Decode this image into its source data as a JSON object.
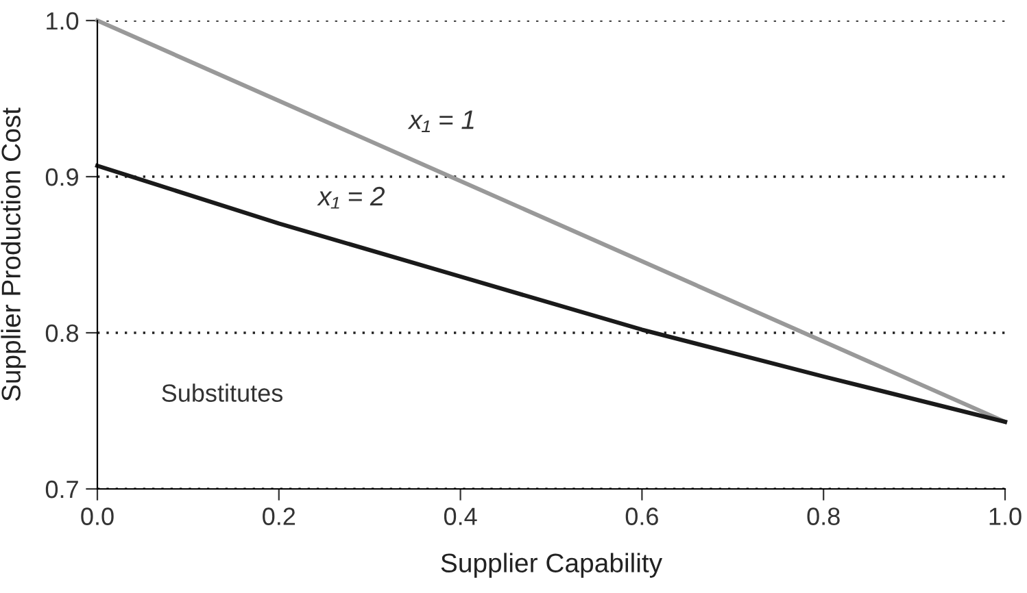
{
  "chart_data": {
    "type": "line",
    "xlabel": "Supplier Capability",
    "ylabel": "Supplier Production Cost",
    "series": [
      {
        "name": "x₁ = 1",
        "color": "#999999",
        "x": [
          0.0,
          1.0
        ],
        "values": [
          1.0,
          0.743
        ]
      },
      {
        "name": "x₁ = 2",
        "color": "#1a1a1a",
        "x": [
          0.0,
          0.2,
          0.4,
          0.6,
          0.8,
          1.0
        ],
        "values": [
          0.907,
          0.87,
          0.836,
          0.802,
          0.772,
          0.743
        ]
      }
    ],
    "annotations": [
      "Substitutes"
    ],
    "xlim": [
      0.0,
      1.0
    ],
    "ylim": [
      0.7,
      1.0
    ],
    "xticks": [
      {
        "value": 0.0,
        "label": "0.0"
      },
      0.2,
      0.4,
      0.6,
      0.8,
      {
        "value": 1.0,
        "label": "1.0"
      }
    ],
    "yticks": [
      {
        "value": 0.7,
        "label": "0.7"
      },
      0.8,
      0.9,
      {
        "value": 1.0,
        "label": "1.0"
      }
    ],
    "grid": "y",
    "legend": false,
    "marker": "none",
    "line_style": "solid"
  }
}
